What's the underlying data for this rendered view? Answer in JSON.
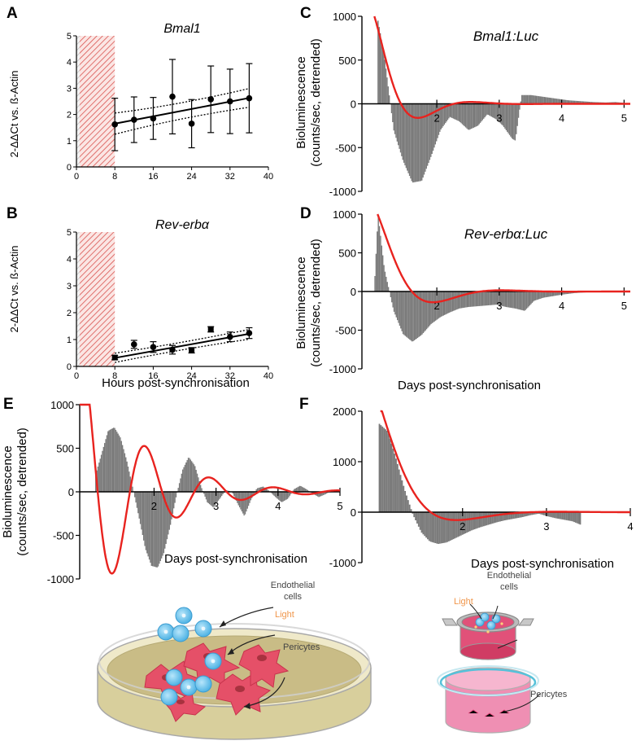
{
  "panels": {
    "A": {
      "label": "A"
    },
    "B": {
      "label": "B"
    },
    "C": {
      "label": "C"
    },
    "D": {
      "label": "D"
    },
    "E": {
      "label": "E"
    },
    "F": {
      "label": "F"
    }
  },
  "shared": {
    "hours_xlabel": "Hours post-synchronisation",
    "days_xlabel": "Days post-synchronisation",
    "qpcr_ylabel": "2-ΔΔCt vs. ß-Actin",
    "biolum_ylabel_1": "Bioluminescence",
    "biolum_ylabel_2": "(counts/sec, detrended)"
  },
  "chart_data": [
    {
      "panel": "A",
      "type": "scatter",
      "title": "Bmal1",
      "xlabel": "",
      "ylabel": "2-ΔΔCt vs. ß-Actin",
      "xlim": [
        0,
        40
      ],
      "ylim": [
        0,
        5
      ],
      "xticks": [
        0,
        8,
        16,
        24,
        32,
        40
      ],
      "yticks": [
        0,
        1,
        2,
        3,
        4,
        5
      ],
      "shaded_region": [
        0,
        8
      ],
      "x": [
        8,
        12,
        16,
        20,
        24,
        28,
        32,
        36
      ],
      "y": [
        1.62,
        1.8,
        1.85,
        2.68,
        1.65,
        2.58,
        2.5,
        2.62
      ],
      "err": [
        1.0,
        0.87,
        0.8,
        1.42,
        0.92,
        1.27,
        1.23,
        1.32
      ],
      "fit": {
        "intercept": 1.37,
        "slope": 0.035
      },
      "band": {
        "lower": [
          1.18,
          2.22
        ],
        "upper": [
          2.12,
          3.05
        ]
      }
    },
    {
      "panel": "B",
      "type": "scatter",
      "title": "Rev-erbα",
      "xlabel": "Hours post-synchronisation",
      "ylabel": "2-ΔΔCt vs. ß-Actin",
      "xlim": [
        0,
        40
      ],
      "ylim": [
        0,
        5
      ],
      "xticks": [
        0,
        8,
        16,
        24,
        32,
        40
      ],
      "yticks": [
        0,
        1,
        2,
        3,
        4,
        5
      ],
      "shaded_region": [
        0,
        8
      ],
      "x": [
        8,
        12,
        16,
        20,
        24,
        28,
        32,
        36
      ],
      "y": [
        0.33,
        0.82,
        0.72,
        0.62,
        0.6,
        1.38,
        1.1,
        1.24
      ],
      "err": [
        0.08,
        0.15,
        0.2,
        0.16,
        0.1,
        0.1,
        0.18,
        0.2
      ],
      "fit": {
        "intercept": 0.06,
        "slope": 0.032
      },
      "band": {
        "lower": [
          0.12,
          0.98
        ],
        "upper": [
          0.52,
          1.4
        ]
      }
    },
    {
      "panel": "C",
      "type": "bar",
      "title": "Bmal1:Luc",
      "xlabel": "",
      "ylabel": "Bioluminescence (counts/sec, detrended)",
      "xlim": [
        0.8,
        5.1
      ],
      "ylim": [
        -1000,
        1000
      ],
      "xticks": [
        2,
        3,
        4,
        5
      ],
      "yticks": [
        -1000,
        -500,
        0,
        500,
        1000
      ],
      "x": [
        1.05,
        1.15,
        1.3,
        1.45,
        1.6,
        1.75,
        1.9,
        2.05,
        2.2,
        2.35,
        2.5,
        2.65,
        2.8,
        2.95,
        3.05,
        3.1,
        3.15,
        3.2,
        3.25,
        3.35,
        3.5,
        3.7,
        3.9,
        4.1,
        4.3,
        4.5,
        4.7,
        4.85,
        5.0
      ],
      "y": [
        950,
        550,
        -300,
        -650,
        -900,
        -880,
        -600,
        -300,
        -150,
        -200,
        -300,
        -250,
        -120,
        -180,
        -250,
        -300,
        -350,
        -400,
        -420,
        100,
        100,
        80,
        60,
        40,
        30,
        20,
        15,
        20,
        10
      ],
      "fit_line": {
        "color": "#e8231f",
        "A": 1000,
        "tau": 0.42,
        "period": 1.7,
        "t0": 1.0
      }
    },
    {
      "panel": "D",
      "type": "bar",
      "title": "Rev-erbα:Luc",
      "xlabel": "Days post-synchronisation",
      "ylabel": "Bioluminescence (counts/sec, detrended)",
      "xlim": [
        0.8,
        5.1
      ],
      "ylim": [
        -1000,
        1000
      ],
      "xticks": [
        2,
        3,
        4,
        5
      ],
      "yticks": [
        -1000,
        -500,
        0,
        500,
        1000
      ],
      "x": [
        1.0,
        1.05,
        1.15,
        1.3,
        1.45,
        1.6,
        1.75,
        1.9,
        2.05,
        2.2,
        2.35,
        2.5,
        2.65,
        2.8,
        2.95,
        3.1,
        3.25,
        3.4,
        3.55,
        3.7,
        3.85,
        4.0,
        4.2,
        4.4
      ],
      "y": [
        200,
        1000,
        300,
        -250,
        -550,
        -650,
        -560,
        -420,
        -330,
        -270,
        -220,
        -200,
        -190,
        -180,
        -170,
        -200,
        -220,
        -250,
        -120,
        -80,
        -60,
        -40,
        -20,
        -10
      ],
      "fit_line": {
        "color": "#e8231f",
        "A": 1000,
        "tau": 0.5,
        "period": 2.2,
        "t0": 1.05
      }
    },
    {
      "panel": "E",
      "type": "bar",
      "title": "",
      "xlabel": "Days post-synchronisation",
      "ylabel": "Bioluminescence (counts/sec, detrended)",
      "xlim": [
        0.8,
        5.0
      ],
      "ylim": [
        -1000,
        1000
      ],
      "xticks": [
        2,
        3,
        4,
        5
      ],
      "yticks": [
        -1000,
        -500,
        0,
        500,
        1000
      ],
      "x": [
        1.05,
        1.15,
        1.25,
        1.35,
        1.45,
        1.55,
        1.65,
        1.75,
        1.85,
        1.95,
        2.05,
        2.15,
        2.25,
        2.35,
        2.45,
        2.55,
        2.65,
        2.75,
        2.85,
        2.95,
        3.05,
        3.15,
        3.25,
        3.35,
        3.45,
        3.55,
        3.65,
        3.75,
        3.85,
        3.95,
        4.05,
        4.15,
        4.25,
        4.35,
        4.45,
        4.55,
        4.65,
        4.75,
        4.85,
        4.95
      ],
      "y": [
        200,
        450,
        700,
        740,
        620,
        360,
        40,
        -300,
        -650,
        -850,
        -870,
        -700,
        -400,
        -50,
        250,
        400,
        300,
        60,
        -120,
        -180,
        -80,
        20,
        0,
        -150,
        -280,
        -100,
        40,
        60,
        10,
        -60,
        -120,
        -80,
        30,
        70,
        30,
        -20,
        -60,
        -30,
        10,
        30
      ],
      "fit_line": {
        "color": "#e8231f",
        "kind": "sine",
        "A": 1700,
        "tau": 0.9,
        "period": 1.04,
        "phase": -0.05
      }
    },
    {
      "panel": "F",
      "type": "bar",
      "title": "",
      "xlabel": "Days post-synchronisation",
      "ylabel": "",
      "xlim": [
        0.8,
        4.0
      ],
      "ylim": [
        -1000,
        2000
      ],
      "xticks": [
        2,
        3,
        4
      ],
      "yticks": [
        -1000,
        0,
        1000,
        2000
      ],
      "x": [
        1.0,
        1.1,
        1.2,
        1.3,
        1.4,
        1.5,
        1.6,
        1.7,
        1.8,
        1.9,
        2.0,
        2.1,
        2.2,
        2.3,
        2.4,
        2.5,
        2.6,
        2.7,
        2.8,
        2.9,
        3.0,
        3.1,
        3.2,
        3.3,
        3.4
      ],
      "y": [
        1750,
        1600,
        1050,
        450,
        -50,
        -400,
        -580,
        -630,
        -600,
        -520,
        -440,
        -360,
        -300,
        -250,
        -200,
        -160,
        -130,
        -100,
        -60,
        -30,
        -80,
        -120,
        -150,
        -180,
        -250
      ],
      "fit_line": {
        "color": "#e8231f",
        "A": 2100,
        "tau": 0.4,
        "period": 2.4,
        "t0": 1.02
      }
    }
  ],
  "illustrations": {
    "left": {
      "endothelial": "Endothelial",
      "endothelial2": "cells",
      "light": "Light",
      "pericytes": "Pericytes"
    },
    "right": {
      "light": "Light",
      "endothelial": "Endothelial",
      "endothelial2": "cells",
      "pericytes": "Pericytes"
    }
  },
  "colors": {
    "fit": "#e8231f",
    "bars": "#7a7a7a",
    "hatch": "#d9534f",
    "dish": "#c9bc86",
    "cells_red": "#e55068",
    "cells_blue": "#6cc3ea"
  }
}
